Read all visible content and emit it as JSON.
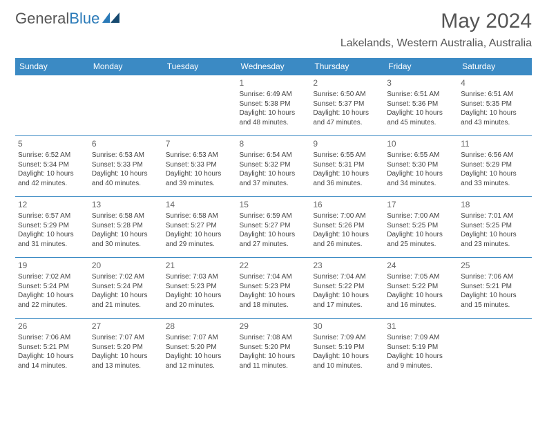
{
  "logo": {
    "part1": "General",
    "part2": "Blue"
  },
  "title": "May 2024",
  "location": "Lakelands, Western Australia, Australia",
  "colors": {
    "header_bg": "#3b8ac4",
    "header_text": "#ffffff",
    "border": "#3b8ac4",
    "text": "#444444",
    "title_text": "#555555",
    "logo_gray": "#555555",
    "logo_blue": "#2a7ab8",
    "background": "#ffffff"
  },
  "days_of_week": [
    "Sunday",
    "Monday",
    "Tuesday",
    "Wednesday",
    "Thursday",
    "Friday",
    "Saturday"
  ],
  "weeks": [
    [
      null,
      null,
      null,
      {
        "n": "1",
        "sr": "6:49 AM",
        "ss": "5:38 PM",
        "dl": "10 hours and 48 minutes."
      },
      {
        "n": "2",
        "sr": "6:50 AM",
        "ss": "5:37 PM",
        "dl": "10 hours and 47 minutes."
      },
      {
        "n": "3",
        "sr": "6:51 AM",
        "ss": "5:36 PM",
        "dl": "10 hours and 45 minutes."
      },
      {
        "n": "4",
        "sr": "6:51 AM",
        "ss": "5:35 PM",
        "dl": "10 hours and 43 minutes."
      }
    ],
    [
      {
        "n": "5",
        "sr": "6:52 AM",
        "ss": "5:34 PM",
        "dl": "10 hours and 42 minutes."
      },
      {
        "n": "6",
        "sr": "6:53 AM",
        "ss": "5:33 PM",
        "dl": "10 hours and 40 minutes."
      },
      {
        "n": "7",
        "sr": "6:53 AM",
        "ss": "5:33 PM",
        "dl": "10 hours and 39 minutes."
      },
      {
        "n": "8",
        "sr": "6:54 AM",
        "ss": "5:32 PM",
        "dl": "10 hours and 37 minutes."
      },
      {
        "n": "9",
        "sr": "6:55 AM",
        "ss": "5:31 PM",
        "dl": "10 hours and 36 minutes."
      },
      {
        "n": "10",
        "sr": "6:55 AM",
        "ss": "5:30 PM",
        "dl": "10 hours and 34 minutes."
      },
      {
        "n": "11",
        "sr": "6:56 AM",
        "ss": "5:29 PM",
        "dl": "10 hours and 33 minutes."
      }
    ],
    [
      {
        "n": "12",
        "sr": "6:57 AM",
        "ss": "5:29 PM",
        "dl": "10 hours and 31 minutes."
      },
      {
        "n": "13",
        "sr": "6:58 AM",
        "ss": "5:28 PM",
        "dl": "10 hours and 30 minutes."
      },
      {
        "n": "14",
        "sr": "6:58 AM",
        "ss": "5:27 PM",
        "dl": "10 hours and 29 minutes."
      },
      {
        "n": "15",
        "sr": "6:59 AM",
        "ss": "5:27 PM",
        "dl": "10 hours and 27 minutes."
      },
      {
        "n": "16",
        "sr": "7:00 AM",
        "ss": "5:26 PM",
        "dl": "10 hours and 26 minutes."
      },
      {
        "n": "17",
        "sr": "7:00 AM",
        "ss": "5:25 PM",
        "dl": "10 hours and 25 minutes."
      },
      {
        "n": "18",
        "sr": "7:01 AM",
        "ss": "5:25 PM",
        "dl": "10 hours and 23 minutes."
      }
    ],
    [
      {
        "n": "19",
        "sr": "7:02 AM",
        "ss": "5:24 PM",
        "dl": "10 hours and 22 minutes."
      },
      {
        "n": "20",
        "sr": "7:02 AM",
        "ss": "5:24 PM",
        "dl": "10 hours and 21 minutes."
      },
      {
        "n": "21",
        "sr": "7:03 AM",
        "ss": "5:23 PM",
        "dl": "10 hours and 20 minutes."
      },
      {
        "n": "22",
        "sr": "7:04 AM",
        "ss": "5:23 PM",
        "dl": "10 hours and 18 minutes."
      },
      {
        "n": "23",
        "sr": "7:04 AM",
        "ss": "5:22 PM",
        "dl": "10 hours and 17 minutes."
      },
      {
        "n": "24",
        "sr": "7:05 AM",
        "ss": "5:22 PM",
        "dl": "10 hours and 16 minutes."
      },
      {
        "n": "25",
        "sr": "7:06 AM",
        "ss": "5:21 PM",
        "dl": "10 hours and 15 minutes."
      }
    ],
    [
      {
        "n": "26",
        "sr": "7:06 AM",
        "ss": "5:21 PM",
        "dl": "10 hours and 14 minutes."
      },
      {
        "n": "27",
        "sr": "7:07 AM",
        "ss": "5:20 PM",
        "dl": "10 hours and 13 minutes."
      },
      {
        "n": "28",
        "sr": "7:07 AM",
        "ss": "5:20 PM",
        "dl": "10 hours and 12 minutes."
      },
      {
        "n": "29",
        "sr": "7:08 AM",
        "ss": "5:20 PM",
        "dl": "10 hours and 11 minutes."
      },
      {
        "n": "30",
        "sr": "7:09 AM",
        "ss": "5:19 PM",
        "dl": "10 hours and 10 minutes."
      },
      {
        "n": "31",
        "sr": "7:09 AM",
        "ss": "5:19 PM",
        "dl": "10 hours and 9 minutes."
      },
      null
    ]
  ],
  "labels": {
    "sunrise": "Sunrise:",
    "sunset": "Sunset:",
    "daylight": "Daylight:"
  }
}
